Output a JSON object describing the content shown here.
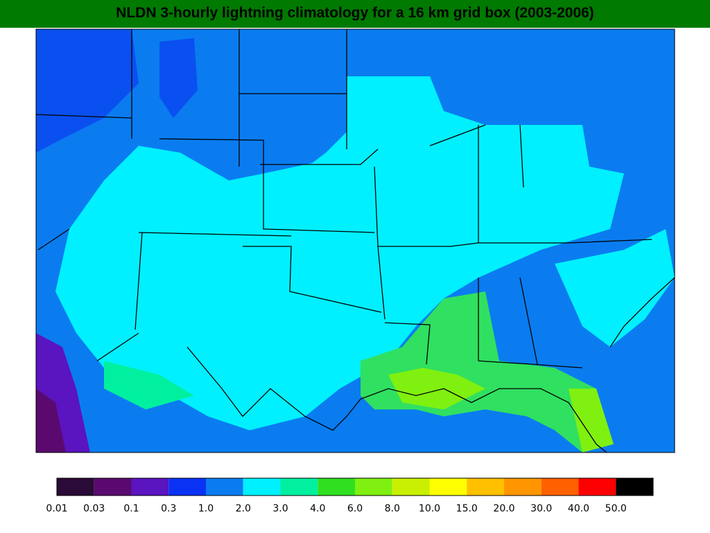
{
  "title": "NLDN 3-hourly lightning climatology for a 16 km grid box (2003-2006)",
  "legend": {
    "labels": [
      "0.01",
      "0.03",
      "0.1",
      "0.3",
      "1.0",
      "2.0",
      "3.0",
      "4.0",
      "6.0",
      "8.0",
      "10.0",
      "15.0",
      "20.0",
      "30.0",
      "40.0",
      "50.0"
    ],
    "colors": [
      "#2a0a36",
      "#5a0a6e",
      "#5a14c0",
      "#0a32f5",
      "#0a7cf0",
      "#00f0ff",
      "#00f0a0",
      "#30e020",
      "#80f010",
      "#c8f000",
      "#ffff00",
      "#ffc000",
      "#ff9600",
      "#ff6000",
      "#ff0000",
      "#000000"
    ]
  }
}
